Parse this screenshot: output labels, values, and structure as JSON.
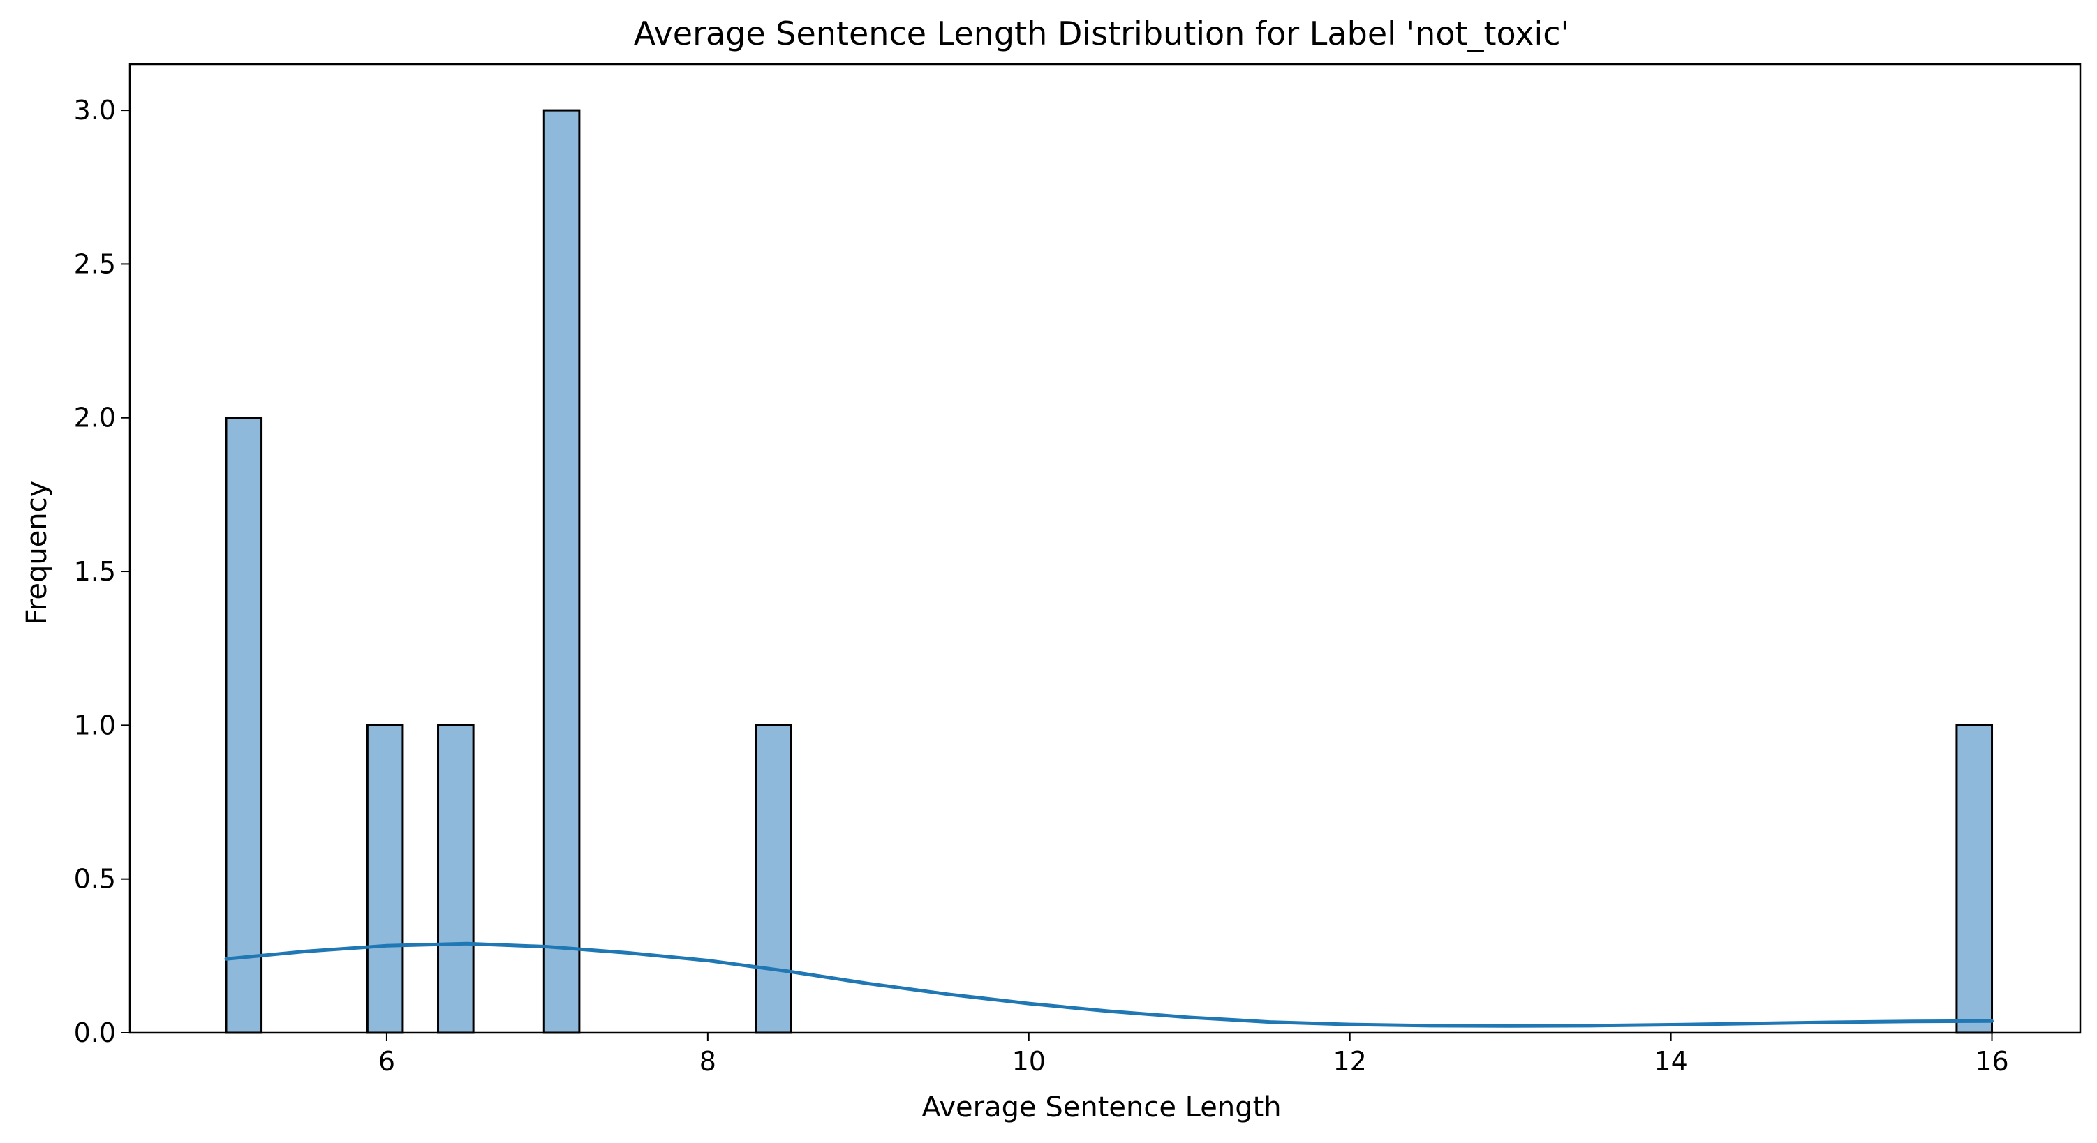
{
  "chart_data": {
    "type": "bar",
    "title": "Average Sentence Length Distribution for Label 'not_toxic'",
    "xlabel": "Average Sentence Length",
    "ylabel": "Frequency",
    "xlim": [
      4.4,
      16.55
    ],
    "ylim": [
      0,
      3.15
    ],
    "xticks": [
      6,
      8,
      10,
      12,
      14,
      16
    ],
    "xtick_labels": [
      "6",
      "8",
      "10",
      "12",
      "14",
      "16"
    ],
    "yticks": [
      0,
      0.5,
      1,
      1.5,
      2,
      2.5,
      3
    ],
    "ytick_labels": [
      "0.0",
      "0.5",
      "1.0",
      "1.5",
      "2.0",
      "2.5",
      "3.0"
    ],
    "grid": false,
    "bar_color": "#8fb9da",
    "line_color": "#1f77b4",
    "bars": [
      {
        "x0": 5.0,
        "x1": 5.22,
        "value": 2
      },
      {
        "x0": 5.88,
        "x1": 6.1,
        "value": 1
      },
      {
        "x0": 6.32,
        "x1": 6.54,
        "value": 1
      },
      {
        "x0": 6.98,
        "x1": 7.2,
        "value": 3
      },
      {
        "x0": 8.3,
        "x1": 8.52,
        "value": 1
      },
      {
        "x0": 15.78,
        "x1": 16.0,
        "value": 1
      }
    ],
    "kde": {
      "x": [
        5.0,
        5.5,
        6.0,
        6.5,
        7.0,
        7.5,
        8.0,
        8.5,
        9.0,
        9.5,
        10.0,
        10.5,
        11.0,
        11.5,
        12.0,
        12.5,
        13.0,
        13.5,
        14.0,
        14.5,
        15.0,
        15.5,
        16.0
      ],
      "y": [
        0.24,
        0.265,
        0.283,
        0.29,
        0.28,
        0.26,
        0.235,
        0.2,
        0.16,
        0.125,
        0.095,
        0.07,
        0.05,
        0.035,
        0.027,
        0.023,
        0.022,
        0.023,
        0.026,
        0.03,
        0.034,
        0.037,
        0.038
      ]
    }
  }
}
